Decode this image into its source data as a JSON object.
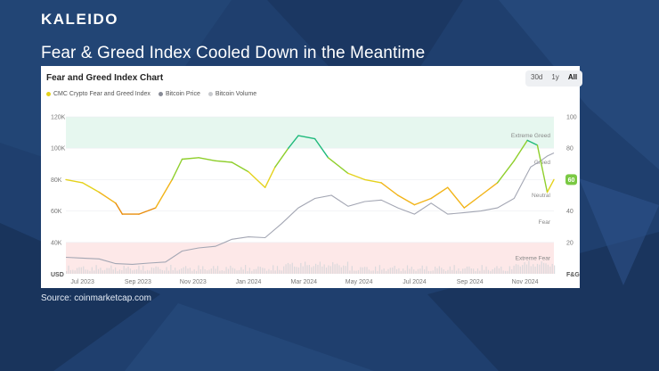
{
  "slide": {
    "logo": "KALEIDO",
    "title": "Fear & Greed Index Cooled Down in the Meantime",
    "source": "Source: coinmarketcap.com"
  },
  "chart_header": {
    "title": "Fear and Greed Index Chart",
    "ranges": [
      "30d",
      "1y",
      "All"
    ],
    "selected_range": "All"
  },
  "colors": {
    "greed_band": "#e6f7ef",
    "fear_band": "#fde8e8",
    "price_line": "#a3a6b3",
    "index_legend": "#e5d21c",
    "price_legend": "#888b96",
    "volume_legend": "#c8cace",
    "current_badge": "#7ac943"
  },
  "chart_data": {
    "type": "line",
    "title": "Fear and Greed Index Chart",
    "legend": [
      "CMC Crypto Fear and Greed Index",
      "Bitcoin Price",
      "Bitcoin Volume"
    ],
    "x_labels": [
      "Jul 2023",
      "Sep 2023",
      "Nov 2023",
      "Jan 2024",
      "Mar 2024",
      "May 2024",
      "Jul 2024",
      "Sep 2024",
      "Nov 2024"
    ],
    "x_range": [
      2023.45,
      2024.92
    ],
    "y_left": {
      "label": "USD",
      "ticks": [
        "120K",
        "100K",
        "80K",
        "60K",
        "40K"
      ],
      "range": [
        20000,
        120000
      ]
    },
    "y_right": {
      "label": "F&G",
      "ticks": [
        "100",
        "80",
        "60",
        "40",
        "20"
      ],
      "range": [
        0,
        100
      ]
    },
    "zones": [
      "Extreme Greed",
      "Greed",
      "Neutral",
      "Fear",
      "Extreme Fear"
    ],
    "current_index": "60",
    "series": [
      {
        "name": "CMC Crypto Fear and Greed Index",
        "axis": "right",
        "x": [
          2023.45,
          2023.5,
          2023.55,
          2023.6,
          2023.62,
          2023.67,
          2023.72,
          2023.77,
          2023.8,
          2023.85,
          2023.9,
          2023.95,
          2024.0,
          2024.05,
          2024.08,
          2024.12,
          2024.15,
          2024.2,
          2024.24,
          2024.3,
          2024.35,
          2024.4,
          2024.45,
          2024.5,
          2024.55,
          2024.6,
          2024.65,
          2024.7,
          2024.75,
          2024.8,
          2024.84,
          2024.87,
          2024.9,
          2024.92
        ],
        "values": [
          60,
          58,
          52,
          45,
          38,
          38,
          42,
          60,
          73,
          74,
          72,
          71,
          65,
          55,
          68,
          80,
          88,
          86,
          74,
          64,
          60,
          58,
          50,
          44,
          48,
          55,
          42,
          50,
          58,
          72,
          85,
          82,
          52,
          60
        ]
      },
      {
        "name": "Bitcoin Price",
        "axis": "left",
        "x": [
          2023.45,
          2023.5,
          2023.55,
          2023.6,
          2023.65,
          2023.7,
          2023.75,
          2023.8,
          2023.85,
          2023.9,
          2023.95,
          2024.0,
          2024.05,
          2024.1,
          2024.15,
          2024.2,
          2024.25,
          2024.3,
          2024.35,
          2024.4,
          2024.45,
          2024.5,
          2024.55,
          2024.6,
          2024.65,
          2024.7,
          2024.75,
          2024.8,
          2024.85,
          2024.88,
          2024.9,
          2024.92
        ],
        "values": [
          30500,
          30000,
          29500,
          26500,
          26000,
          26800,
          27500,
          34500,
          36500,
          37500,
          42000,
          43500,
          43000,
          52000,
          62000,
          68000,
          70000,
          63000,
          66000,
          67000,
          62000,
          58000,
          65000,
          58000,
          59000,
          60000,
          62000,
          68000,
          88000,
          92000,
          95000,
          97000
        ]
      },
      {
        "name": "Bitcoin Volume",
        "axis": "left",
        "x": [],
        "values": []
      }
    ]
  }
}
